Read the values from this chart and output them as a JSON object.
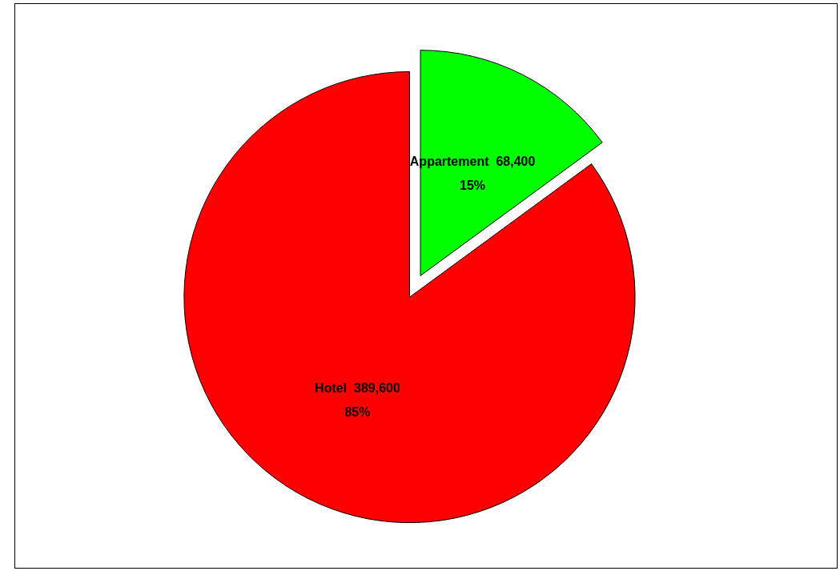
{
  "chart_data": {
    "type": "pie",
    "categories": [
      "Appartement",
      "Hotel"
    ],
    "values": [
      68400,
      389600
    ],
    "colors": [
      "#00ff00",
      "#ff0000"
    ],
    "value_labels": [
      "68,400\n15%",
      "389,600\n85%"
    ],
    "legend": false
  }
}
